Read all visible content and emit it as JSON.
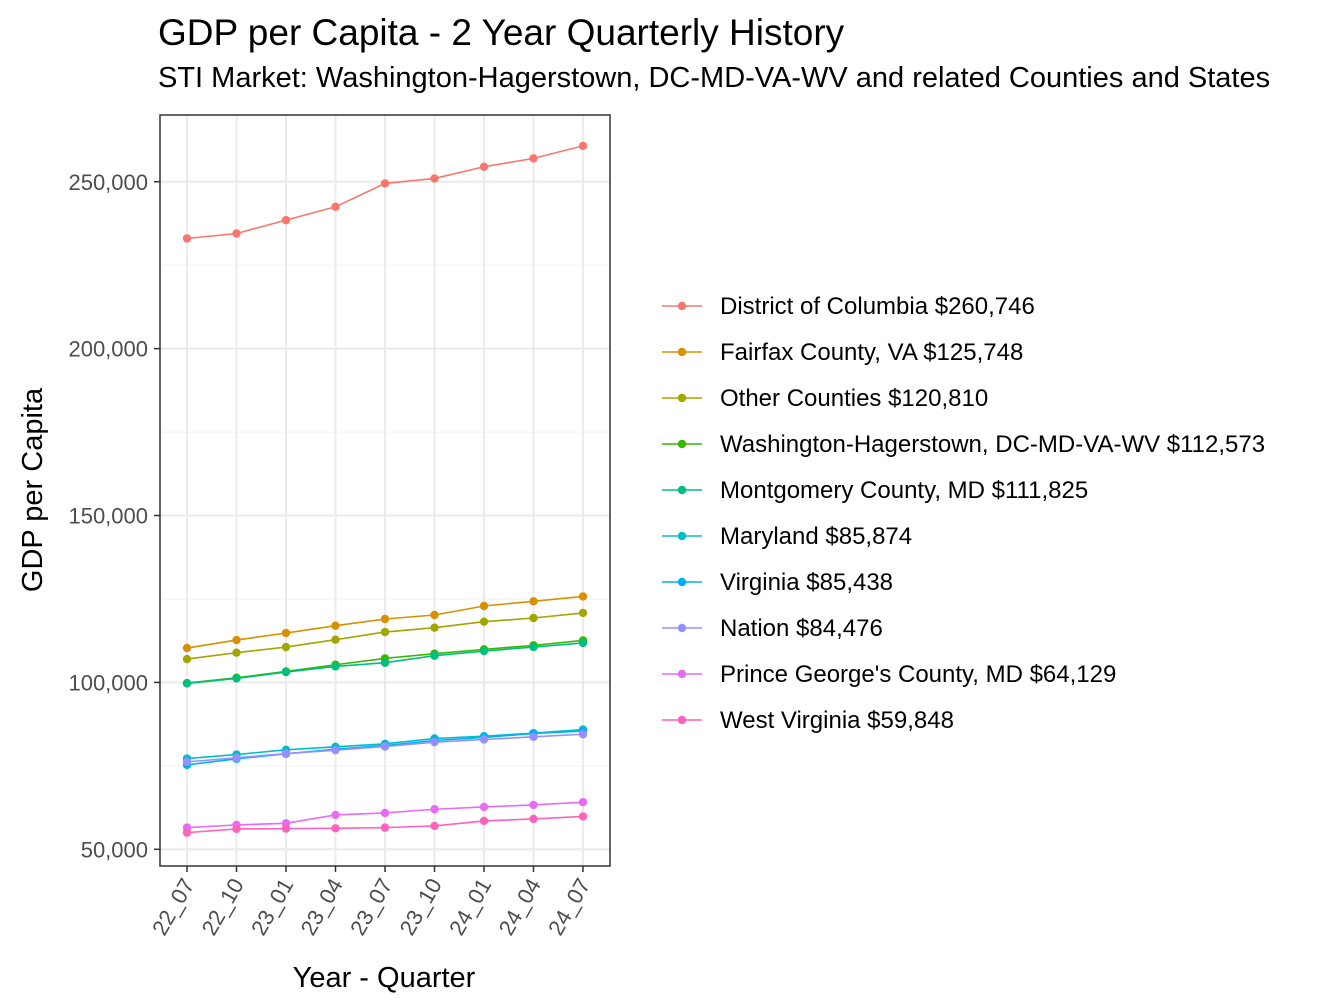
{
  "chart_data": {
    "type": "line",
    "title": "GDP per Capita - 2 Year Quarterly History",
    "subtitle": "STI Market: Washington-Hagerstown, DC-MD-VA-WV and related Counties and States",
    "xlabel": "Year - Quarter",
    "ylabel": "GDP per Capita",
    "categories": [
      "22_07",
      "22_10",
      "23_01",
      "23_04",
      "23_07",
      "23_10",
      "24_01",
      "24_04",
      "24_07"
    ],
    "ylim": [
      45000,
      270000
    ],
    "yticks": [
      50000,
      100000,
      150000,
      200000,
      250000
    ],
    "ytick_labels": [
      "50,000",
      "100,000",
      "150,000",
      "200,000",
      "250,000"
    ],
    "grid": true,
    "legend_position": "right",
    "series": [
      {
        "name": "District of Columbia $260,746",
        "color": "#F8766D",
        "values": [
          233000,
          234500,
          238500,
          242500,
          249500,
          251000,
          254500,
          257000,
          260746
        ]
      },
      {
        "name": "Fairfax County, VA $125,748",
        "color": "#D89000",
        "values": [
          110300,
          112700,
          114800,
          117000,
          119000,
          120200,
          122900,
          124300,
          125748
        ]
      },
      {
        "name": "Other Counties $120,810",
        "color": "#A3A500",
        "values": [
          107000,
          108900,
          110600,
          112800,
          115100,
          116400,
          118200,
          119300,
          120810
        ]
      },
      {
        "name": "Washington-Hagerstown, DC-MD-VA-WV $112,573",
        "color": "#39B600",
        "values": [
          99800,
          101400,
          103300,
          105300,
          107200,
          108600,
          109900,
          111100,
          112573
        ]
      },
      {
        "name": "Montgomery County, MD $111,825",
        "color": "#00BF7D",
        "values": [
          99700,
          101200,
          103100,
          104800,
          105900,
          108000,
          109400,
          110600,
          111825
        ]
      },
      {
        "name": "Maryland $85,874",
        "color": "#00BFC4",
        "values": [
          77200,
          78400,
          79800,
          80700,
          81600,
          83200,
          83900,
          84800,
          85874
        ]
      },
      {
        "name": "Virginia $85,438",
        "color": "#00B0F6",
        "values": [
          75300,
          77100,
          78600,
          80000,
          81100,
          82600,
          83500,
          84700,
          85438
        ]
      },
      {
        "name": "Nation $84,476",
        "color": "#9590FF",
        "values": [
          76200,
          77400,
          78700,
          79700,
          80800,
          82100,
          82900,
          83700,
          84476
        ]
      },
      {
        "name": "Prince George's County, MD $64,129",
        "color": "#E76BF3",
        "values": [
          56500,
          57300,
          57800,
          60300,
          60900,
          62000,
          62700,
          63300,
          64129
        ]
      },
      {
        "name": "West Virginia $59,848",
        "color": "#FF62BC",
        "values": [
          55000,
          56100,
          56200,
          56300,
          56500,
          57000,
          58500,
          59100,
          59848
        ]
      }
    ]
  }
}
